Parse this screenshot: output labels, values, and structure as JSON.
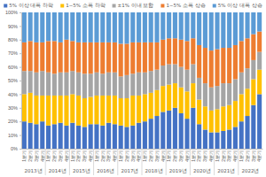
{
  "chart_data": {
    "type": "bar",
    "stacked": true,
    "legend": "top",
    "grid": false,
    "categories": [
      "1분기",
      "2분기",
      "3분기",
      "4분기",
      "1분기",
      "2분기",
      "3분기",
      "4분기",
      "1분기",
      "2분기",
      "3분기",
      "4분기",
      "1분기",
      "2분기",
      "3분기",
      "4분기",
      "1분기",
      "2분기",
      "3분기",
      "4분기",
      "1분기",
      "2분기",
      "3분기",
      "4분기",
      "1분기",
      "2분기",
      "3분기",
      "4분기",
      "1분기",
      "2분기",
      "3분기",
      "4분기",
      "1분기",
      "2분기",
      "3분기",
      "4분기",
      "1분기",
      "2분기",
      "3분기",
      "4분기"
    ],
    "groups": [
      "2013년",
      "2014년",
      "2015년",
      "2016년",
      "2017년",
      "2018년",
      "2019년",
      "2020년",
      "2021년",
      "2022년"
    ],
    "ylim": [
      0,
      100
    ],
    "yticks": [
      {
        "value": 0,
        "label": "0%"
      },
      {
        "value": 10,
        "label": "10%"
      },
      {
        "value": 20,
        "label": "20%"
      },
      {
        "value": 30,
        "label": "30%"
      },
      {
        "value": 40,
        "label": "40%"
      },
      {
        "value": 50,
        "label": "50%"
      },
      {
        "value": 60,
        "label": "60%"
      },
      {
        "value": 70,
        "label": "70%"
      },
      {
        "value": 80,
        "label": "80%"
      },
      {
        "value": 90,
        "label": "90%"
      },
      {
        "value": 100,
        "label": "100%"
      }
    ],
    "series": [
      {
        "name": "5% 이상 대폭 하락",
        "color": "#4472C4",
        "values": [
          20,
          19,
          18,
          20,
          17,
          18,
          19,
          17,
          19,
          17,
          16,
          18,
          18,
          17,
          19,
          18,
          17,
          16,
          17,
          19,
          20,
          22,
          24,
          27,
          28,
          30,
          26,
          22,
          30,
          18,
          14,
          12,
          12,
          13,
          14,
          16,
          20,
          24,
          32,
          40
        ]
      },
      {
        "name": "1~5% 소폭 하락",
        "color": "#FFC000",
        "values": [
          20,
          22,
          21,
          19,
          22,
          21,
          20,
          22,
          21,
          22,
          21,
          20,
          21,
          22,
          20,
          21,
          20,
          21,
          22,
          20,
          20,
          19,
          19,
          19,
          19,
          18,
          19,
          20,
          18,
          18,
          17,
          16,
          17,
          18,
          18,
          19,
          20,
          20,
          19,
          18
        ]
      },
      {
        "name": "±1% 이내 보합",
        "color": "#A5A5A5",
        "values": [
          17,
          16,
          17,
          18,
          17,
          16,
          17,
          17,
          17,
          17,
          18,
          17,
          17,
          16,
          17,
          17,
          16,
          17,
          16,
          17,
          16,
          16,
          15,
          15,
          15,
          14,
          15,
          16,
          14,
          16,
          17,
          17,
          17,
          17,
          16,
          16,
          16,
          15,
          14,
          13
        ]
      },
      {
        "name": "1~5% 소폭 상승",
        "color": "#ED7D31",
        "values": [
          21,
          22,
          22,
          21,
          23,
          24,
          22,
          24,
          22,
          22,
          23,
          23,
          22,
          23,
          22,
          22,
          24,
          23,
          23,
          22,
          22,
          21,
          20,
          19,
          19,
          19,
          20,
          21,
          19,
          24,
          26,
          27,
          27,
          26,
          26,
          25,
          23,
          22,
          19,
          15
        ]
      },
      {
        "name": "5% 이상 대폭 상승",
        "color": "#5B9BD5",
        "values": [
          22,
          21,
          22,
          22,
          21,
          21,
          22,
          20,
          21,
          22,
          22,
          22,
          22,
          22,
          22,
          22,
          23,
          23,
          22,
          22,
          22,
          22,
          22,
          20,
          19,
          19,
          20,
          21,
          19,
          24,
          26,
          28,
          27,
          26,
          26,
          24,
          21,
          19,
          16,
          14
        ]
      }
    ]
  }
}
